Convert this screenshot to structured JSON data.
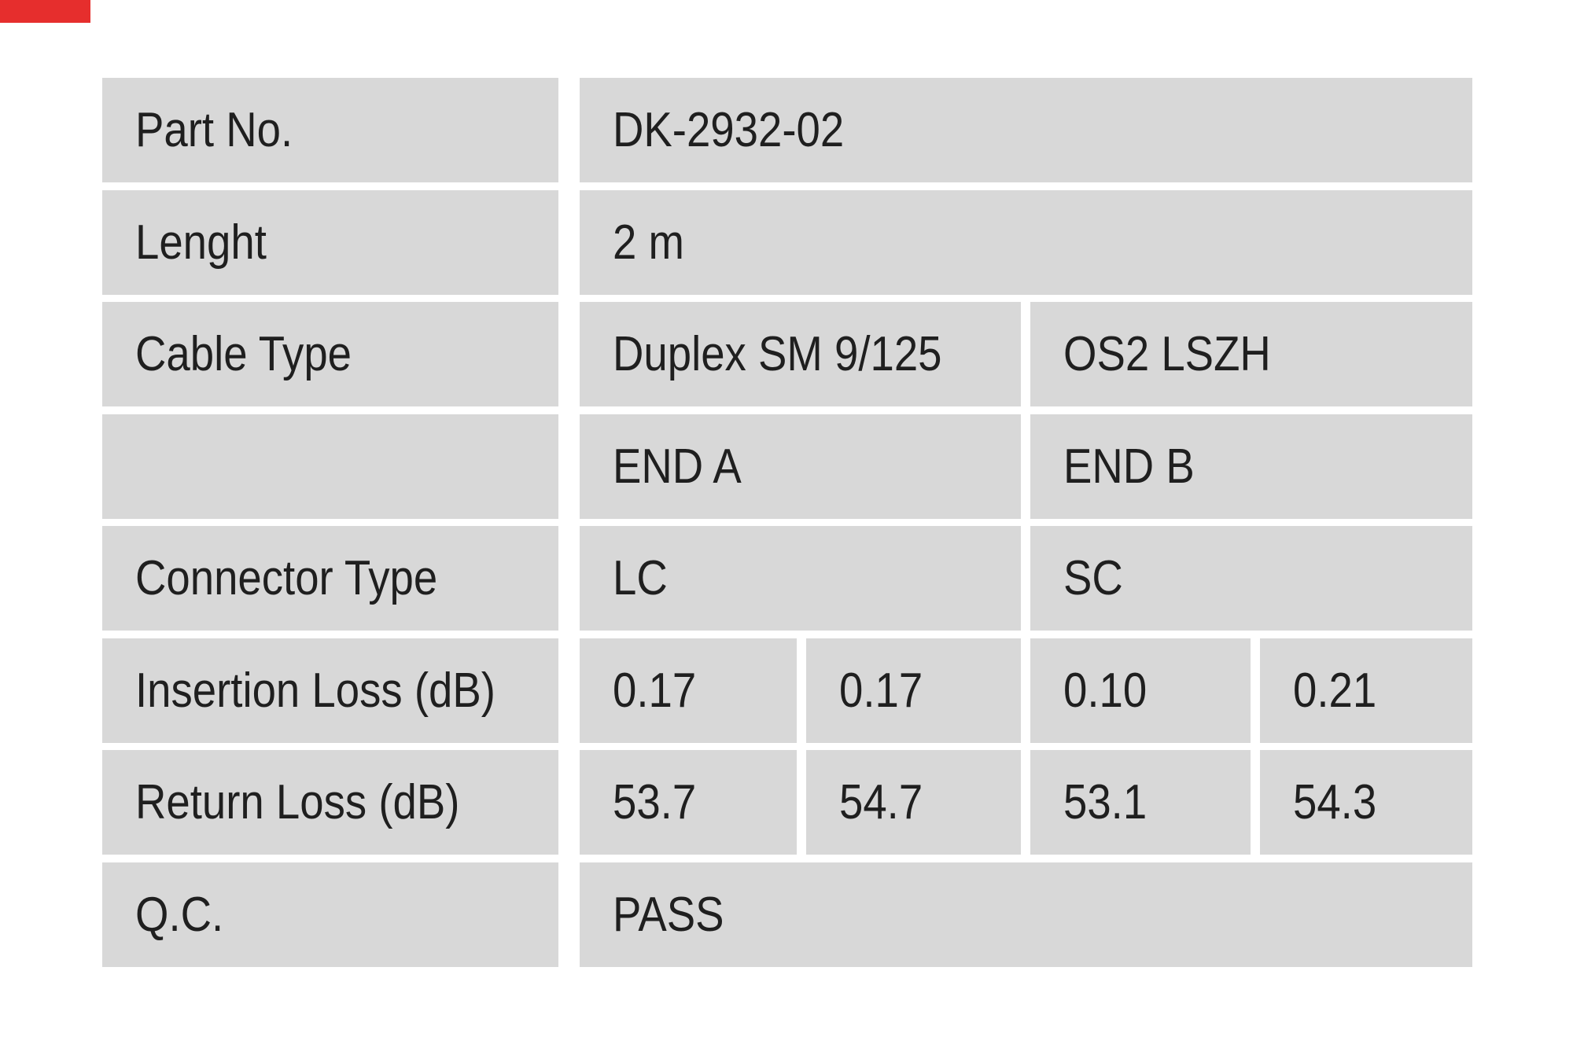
{
  "colors": {
    "background": "#ffffff",
    "cell_bg": "#d8d8d8",
    "text": "#1f1f1f",
    "brand_mark_red": "#e62e2d"
  },
  "table": {
    "rows": {
      "part_no": {
        "label": "Part No.",
        "value": "DK-2932-02"
      },
      "length": {
        "label": "Lenght",
        "value": "2 m"
      },
      "cable_type": {
        "label": "Cable Type",
        "value_a": "Duplex SM 9/125",
        "value_b": "OS2 LSZH"
      },
      "ends": {
        "label": "",
        "value_a": "END A",
        "value_b": "END B"
      },
      "connector_type": {
        "label": "Connector Type",
        "value_a": "LC",
        "value_b": "SC"
      },
      "insertion_loss": {
        "label": "Insertion Loss (dB)",
        "values": [
          "0.17",
          "0.17",
          "0.10",
          "0.21"
        ]
      },
      "return_loss": {
        "label": "Return Loss (dB)",
        "values": [
          "53.7",
          "54.7",
          "53.1",
          "54.3"
        ]
      },
      "qc": {
        "label": "Q.C.",
        "value": "PASS"
      }
    }
  }
}
